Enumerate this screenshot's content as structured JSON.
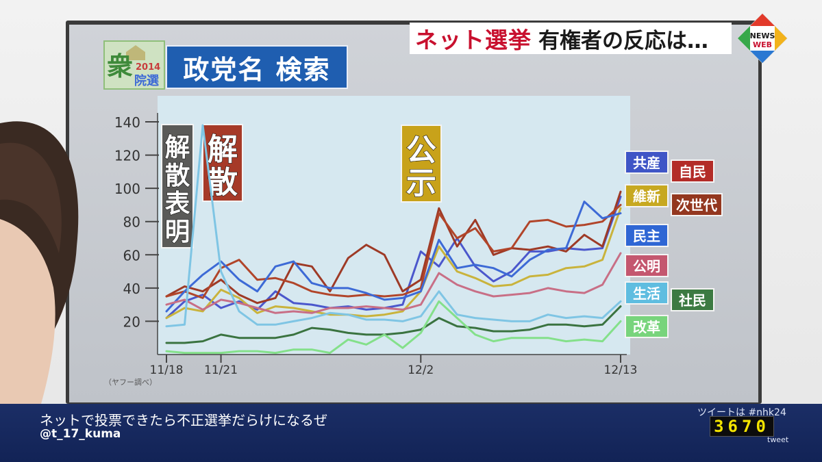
{
  "banner": {
    "highlight": "ネット選挙",
    "text": "有権者の反応は…",
    "logo_top": "NEWS",
    "logo_bottom": "WEB"
  },
  "panel": {
    "title": "政党名 検索",
    "logo_char": "衆",
    "logo_year": "2014",
    "logo_word": "院選"
  },
  "ticker": {
    "message": "ネットで投票できたら不正選挙だらけになるぜ",
    "user": "@t_17_kuma",
    "tweet_label": "ツイートは #nhk24",
    "tweet_count": "3670",
    "tweet_word": "tweet"
  },
  "colors": {
    "screen_bg": "#c9cdd3",
    "plot_bg": "#d6e8f0",
    "banner_red": "#c8102e",
    "ticker_bg": "#16275c",
    "title_bg": "#1f5eb0"
  },
  "chart_data": {
    "type": "line",
    "source_note": "（ヤフー調べ）",
    "ylim": [
      0,
      140
    ],
    "yticks": [
      20,
      40,
      60,
      80,
      100,
      120,
      140
    ],
    "xlim": [
      0,
      25
    ],
    "xticks": [
      {
        "x": 0,
        "label": "11/18"
      },
      {
        "x": 3,
        "label": "11/21"
      },
      {
        "x": 14,
        "label": "12/2"
      },
      {
        "x": 25,
        "label": "12/13"
      }
    ],
    "grid": false,
    "events": [
      {
        "label": "解散表明",
        "color": "#5a5a58",
        "x": 1.3
      },
      {
        "label": "解散",
        "color": "#a63a28",
        "x": 3
      },
      {
        "label": "公示",
        "color": "#c8a21a",
        "x": 14
      }
    ],
    "series": [
      {
        "name": "共産",
        "color": "#4b57cc",
        "label_bg": "#3f55c6",
        "values": [
          22,
          32,
          36,
          28,
          32,
          27,
          38,
          31,
          30,
          28,
          29,
          27,
          28,
          30,
          62,
          53,
          70,
          53,
          44,
          50,
          62,
          62,
          64,
          63,
          64,
          95
        ]
      },
      {
        "name": "自民",
        "color": "#9e3a26",
        "label_bg": "#b32c28",
        "values": [
          35,
          41,
          38,
          45,
          36,
          31,
          34,
          55,
          53,
          38,
          58,
          66,
          60,
          38,
          45,
          88,
          65,
          81,
          60,
          64,
          63,
          65,
          62,
          72,
          65,
          98
        ]
      },
      {
        "name": "維新",
        "color": "#c9b33c",
        "label_bg": "#c7a820",
        "values": [
          22,
          28,
          26,
          39,
          34,
          25,
          29,
          28,
          26,
          24,
          24,
          23,
          24,
          26,
          38,
          65,
          50,
          46,
          41,
          42,
          47,
          48,
          52,
          53,
          57,
          88
        ]
      },
      {
        "name": "次世代",
        "color": "#b1452a",
        "label_bg": "#93371f",
        "values": [
          35,
          38,
          34,
          52,
          57,
          45,
          46,
          43,
          38,
          36,
          35,
          36,
          35,
          36,
          40,
          85,
          70,
          76,
          62,
          64,
          80,
          81,
          77,
          78,
          80,
          90
        ]
      },
      {
        "name": "民主",
        "color": "#3d6ad6",
        "label_bg": "#2f66d4",
        "values": [
          26,
          38,
          48,
          56,
          45,
          38,
          53,
          56,
          43,
          40,
          40,
          37,
          33,
          34,
          38,
          69,
          52,
          54,
          52,
          47,
          57,
          63,
          64,
          92,
          82,
          85
        ]
      },
      {
        "name": "公明",
        "color": "#c86f86",
        "label_bg": "#c4576f",
        "values": [
          30,
          33,
          27,
          33,
          31,
          28,
          25,
          26,
          25,
          28,
          28,
          29,
          28,
          27,
          30,
          49,
          42,
          38,
          35,
          36,
          37,
          40,
          38,
          37,
          42,
          61
        ]
      },
      {
        "name": "生活",
        "color": "#7fc5e4",
        "label_bg": "#5fbde0",
        "values": [
          17,
          18,
          138,
          50,
          26,
          18,
          18,
          20,
          22,
          25,
          24,
          21,
          21,
          20,
          23,
          38,
          24,
          22,
          21,
          20,
          20,
          24,
          22,
          23,
          22,
          32
        ]
      },
      {
        "name": "社民",
        "color": "#3a7340",
        "label_bg": "#3c7a42",
        "values": [
          7,
          7,
          8,
          12,
          10,
          10,
          10,
          12,
          16,
          15,
          13,
          12,
          12,
          13,
          15,
          22,
          17,
          16,
          14,
          14,
          15,
          18,
          18,
          17,
          18,
          29
        ]
      },
      {
        "name": "改革",
        "color": "#84e08a",
        "label_bg": "#78d47c",
        "values": [
          2,
          1,
          1,
          1,
          2,
          2,
          1,
          3,
          3,
          1,
          9,
          6,
          12,
          4,
          13,
          32,
          22,
          12,
          8,
          10,
          10,
          10,
          8,
          9,
          8,
          20
        ]
      }
    ]
  }
}
